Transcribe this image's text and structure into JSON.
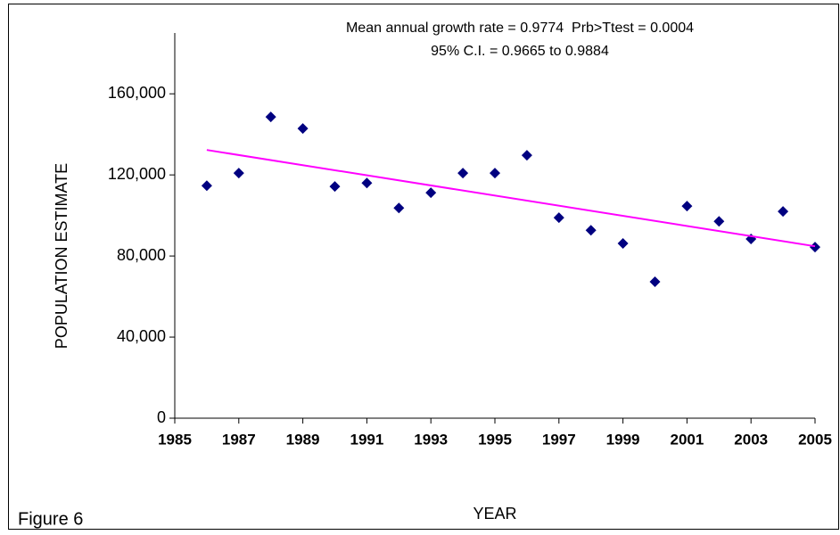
{
  "chart_data": {
    "type": "scatter",
    "annotations": [
      "Mean annual growth rate = 0.9774  Prb>Ttest = 0.0004",
      "95% C.I. = 0.9665 to 0.9884"
    ],
    "xlabel": "YEAR",
    "ylabel": "POPULATION ESTIMATE",
    "caption": "Figure 6",
    "xlim": [
      1985,
      2005
    ],
    "xticks": [
      1985,
      1987,
      1989,
      1991,
      1993,
      1995,
      1997,
      1999,
      2001,
      2003,
      2005
    ],
    "ylim": [
      0,
      190000
    ],
    "yticks": [
      0,
      {
        "value": 40000,
        "label": "40,000"
      },
      {
        "value": 80000,
        "label": "80,000"
      },
      {
        "value": 120000,
        "label": "120,000"
      },
      {
        "value": 160000,
        "label": "160,000"
      }
    ],
    "series": [
      {
        "type": "scatter",
        "color": "#000080",
        "x": [
          1986,
          1987,
          1988,
          1989,
          1990,
          1991,
          1992,
          1993,
          1994,
          1995,
          1996,
          1997,
          1998,
          1999,
          2000,
          2001,
          2002,
          2003,
          2004,
          2005
        ],
        "values": [
          114700,
          120900,
          148600,
          142900,
          114300,
          116000,
          103700,
          111200,
          120900,
          120900,
          129700,
          98900,
          92700,
          86200,
          67300,
          104600,
          97100,
          88400,
          102000,
          84400
        ]
      },
      {
        "type": "line",
        "color": "#ff00ff",
        "x": [
          1986,
          2005
        ],
        "values": [
          132300,
          84800
        ]
      }
    ]
  }
}
